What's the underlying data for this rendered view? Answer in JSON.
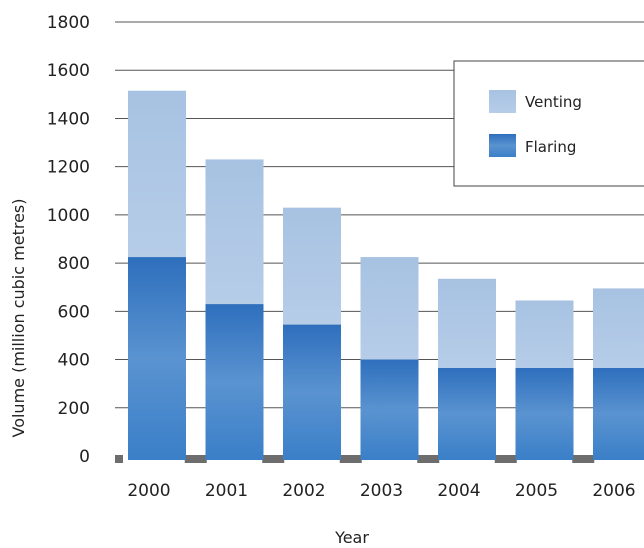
{
  "chart_data": {
    "type": "bar",
    "stacked": true,
    "title": "",
    "xlabel": "Year",
    "ylabel": "Volume (million cubic metres)",
    "categories": [
      "2000",
      "2001",
      "2002",
      "2003",
      "2004",
      "2005",
      "2006"
    ],
    "series": [
      {
        "name": "Flaring",
        "values": [
          825,
          630,
          545,
          400,
          365,
          365,
          365
        ],
        "color": "#3a7fc8"
      },
      {
        "name": "Venting",
        "values": [
          690,
          600,
          485,
          425,
          370,
          280,
          330
        ],
        "color": "#a9c4e3"
      }
    ],
    "ylim": [
      0,
      1800
    ],
    "yticks": [
      "0",
      "200",
      "400",
      "600",
      "800",
      "1000",
      "1200",
      "1400",
      "1600",
      "1800"
    ],
    "grid": true,
    "legend_position": "top-right",
    "legend": [
      "Venting",
      "Flaring"
    ]
  }
}
